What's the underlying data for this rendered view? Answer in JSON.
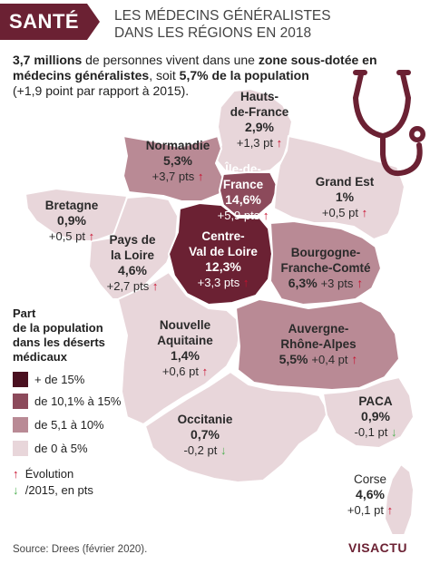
{
  "header": {
    "tag": "SANTÉ",
    "title_line1": "LES MÉDECINS GÉNÉRALISTES",
    "title_line2": "DANS LES RÉGIONS EN 2018"
  },
  "intro": {
    "bold1": "3,7 millions",
    "text1": " de personnes vivent dans une ",
    "bold2": "zone sous-dotée en médecins généralistes",
    "text2": ", soit ",
    "bold3": "5,7% de la population",
    "text3": "(+1,9 point par rapport à 2015)."
  },
  "colors": {
    "brand": "#6b2133",
    "tier1": "#6b2133",
    "tier2": "#8c4a5b",
    "tier3": "#b98a95",
    "tier4": "#e8d6da",
    "up_arrow": "#c8102e",
    "down_arrow": "#4caf50"
  },
  "regions": {
    "hauts_de_france": {
      "name1": "Hauts-",
      "name2": "de-France",
      "pct": "2,9%",
      "evo": "+1,3 pt",
      "trend": "up",
      "tier": "tier4"
    },
    "normandie": {
      "name1": "Normandie",
      "pct": "5,3%",
      "evo": "+3,7 pts",
      "trend": "up",
      "tier": "tier3"
    },
    "ile_de_france": {
      "name1": "Île-de-",
      "name2": "France",
      "pct": "14,6%",
      "evo": "+5,9 pts",
      "trend": "up",
      "tier": "tier2"
    },
    "grand_est": {
      "name1": "Grand Est",
      "pct": "1%",
      "evo": "+0,5 pt",
      "trend": "up",
      "tier": "tier4"
    },
    "bretagne": {
      "name1": "Bretagne",
      "pct": "0,9%",
      "evo": "+0,5 pt",
      "trend": "up",
      "tier": "tier4"
    },
    "pays_de_la_loire": {
      "name1": "Pays de",
      "name2": "la Loire",
      "pct": "4,6%",
      "evo": "+2,7 pts",
      "trend": "up",
      "tier": "tier4"
    },
    "centre_val_de_loire": {
      "name1": "Centre-",
      "name2": "Val de Loire",
      "pct": "12,3%",
      "evo": "+3,3 pts",
      "trend": "up",
      "tier": "tier2"
    },
    "bourgogne_franche_comte": {
      "name1": "Bourgogne-",
      "name2": "Franche-Comté",
      "pct": "6,3%",
      "evo": "+3 pts",
      "trend": "up",
      "tier": "tier3"
    },
    "nouvelle_aquitaine": {
      "name1": "Nouvelle",
      "name2": "Aquitaine",
      "pct": "1,4%",
      "evo": "+0,6 pt",
      "trend": "up",
      "tier": "tier4"
    },
    "auvergne_rhone_alpes": {
      "name1": "Auvergne-",
      "name2": "Rhône-Alpes",
      "pct": "5,5%",
      "evo": "+0,4 pt",
      "trend": "up",
      "tier": "tier3"
    },
    "occitanie": {
      "name1": "Occitanie",
      "pct": "0,7%",
      "evo": "-0,2 pt",
      "trend": "down",
      "tier": "tier4"
    },
    "paca": {
      "name1": "PACA",
      "pct": "0,9%",
      "evo": "-0,1 pt",
      "trend": "down",
      "tier": "tier4"
    },
    "corse": {
      "name1": "Corse",
      "pct": "4,6%",
      "evo": "+0,1 pt",
      "trend": "up",
      "tier": "tier4"
    }
  },
  "legend": {
    "title1": "Part",
    "title2": "de la population",
    "title3": "dans les déserts",
    "title4": "médicaux",
    "items": [
      {
        "label": "+ de 15%",
        "color": "#4a1020"
      },
      {
        "label": "de 10,1% à 15%",
        "color": "#8c4a5b"
      },
      {
        "label": "de 5,1 à 10%",
        "color": "#b98a95"
      },
      {
        "label": "de 0 à 5%",
        "color": "#e8d6da"
      }
    ],
    "evo1": "Évolution",
    "evo2": "/2015, en pts"
  },
  "footer": {
    "source": "Source: Drees (février 2020).",
    "brand": "VISACTU"
  },
  "icons": {
    "stethoscope": "stethoscope-icon",
    "arrow_up": "arrow-up-icon",
    "arrow_down": "arrow-down-icon"
  }
}
